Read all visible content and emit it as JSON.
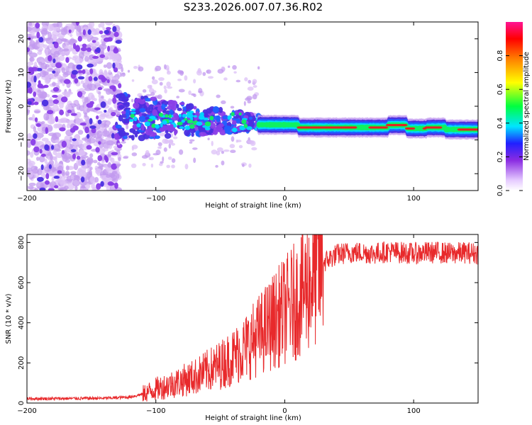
{
  "title": "S233.2026.007.07.36.R02",
  "chart_data": [
    {
      "type": "heatmap",
      "name": "spectrogram",
      "xlabel": "Height of straight line (km)",
      "ylabel": "Frequency (Hz)",
      "xlim": [
        -200,
        150
      ],
      "ylim": [
        -25,
        25
      ],
      "xticks": [
        -200,
        -100,
        0,
        100
      ],
      "yticks": [
        -20,
        -10,
        0,
        10,
        20
      ],
      "colorbar": {
        "label": "Normalized spectral amplitude",
        "range": [
          0,
          1
        ],
        "ticks": [
          0.0,
          0.2,
          0.4,
          0.6,
          0.8
        ]
      },
      "features": [
        {
          "region": "scatter",
          "x_range": [
            -200,
            -130
          ],
          "freq_range": [
            -25,
            25
          ],
          "amplitude": "0.05-0.2"
        },
        {
          "region": "transition",
          "x_range": [
            -130,
            -20
          ],
          "freq_center": -3,
          "freq_spread": 6,
          "amplitude": "0.1-0.4"
        },
        {
          "region": "carrier",
          "x_range": [
            -20,
            150
          ],
          "freq_center": -6.5,
          "amplitude": "0.4-1.0"
        }
      ]
    },
    {
      "type": "line",
      "name": "snr",
      "xlabel": "Height of straight line (km)",
      "ylabel": "SNR (10 * v/v)",
      "xlim": [
        -200,
        150
      ],
      "ylim": [
        0,
        840
      ],
      "xticks": [
        -200,
        -100,
        0,
        100
      ],
      "yticks": [
        0,
        200,
        400,
        600,
        800
      ],
      "series": [
        {
          "name": "SNR",
          "color": "#e8292b",
          "x": [
            -200,
            -180,
            -160,
            -140,
            -120,
            -110,
            -100,
            -90,
            -80,
            -70,
            -60,
            -50,
            -40,
            -30,
            -20,
            -10,
            0,
            10,
            20,
            30,
            40,
            50,
            60,
            70,
            80,
            90,
            100,
            110,
            120,
            130,
            140,
            150
          ],
          "values": [
            22,
            22,
            23,
            24,
            30,
            45,
            70,
            90,
            110,
            130,
            160,
            190,
            230,
            280,
            340,
            400,
            460,
            520,
            610,
            700,
            740,
            750,
            750,
            745,
            755,
            750,
            745,
            750,
            750,
            745,
            750,
            745
          ]
        }
      ]
    }
  ]
}
